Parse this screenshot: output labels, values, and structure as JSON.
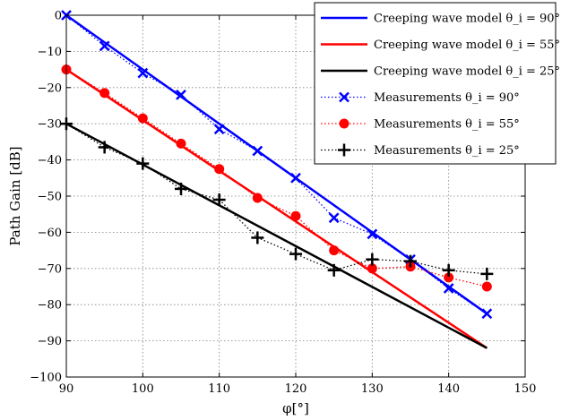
{
  "chart_data": {
    "type": "line",
    "xlabel": "φ[°]",
    "ylabel": "Path Gain [dB]",
    "xlim": [
      90,
      150
    ],
    "ylim": [
      -100,
      0
    ],
    "xticks": [
      90,
      100,
      110,
      120,
      130,
      140,
      150
    ],
    "xtick_labels": [
      "90",
      "100",
      "110",
      "120",
      "130",
      "140",
      "150"
    ],
    "yticks": [
      0,
      -10,
      -20,
      -30,
      -40,
      -50,
      -60,
      -70,
      -80,
      -90,
      -100
    ],
    "ytick_labels": [
      "0",
      "−10",
      "−20",
      "−30",
      "−40",
      "−50",
      "−60",
      "−70",
      "−80",
      "−90",
      "−100"
    ],
    "grid": true,
    "legend_position": "top-right",
    "series": [
      {
        "name": "Creeping wave model θ_i = 90°",
        "kind": "line",
        "color": "#0000ff",
        "x": [
          90,
          145
        ],
        "y": [
          0,
          -82.5
        ]
      },
      {
        "name": "Creeping wave model θ_i = 55°",
        "kind": "line",
        "color": "#ff0000",
        "x": [
          90,
          145
        ],
        "y": [
          -15,
          -92
        ]
      },
      {
        "name": "Creeping wave model θ_i = 25°",
        "kind": "line",
        "color": "#000000",
        "x": [
          90,
          145
        ],
        "y": [
          -30,
          -92
        ]
      },
      {
        "name": "Measurements θ_i = 90°",
        "kind": "markers",
        "marker": "x",
        "color": "#0000ff",
        "x": [
          90,
          95,
          100,
          105,
          110,
          115,
          120,
          125,
          130,
          135,
          140,
          145
        ],
        "y": [
          0,
          -8.5,
          -16,
          -22,
          -31.5,
          -37.5,
          -45,
          -56,
          -60.5,
          -67.5,
          -75.5,
          -82.5
        ]
      },
      {
        "name": "Measurements θ_i = 55°",
        "kind": "markers",
        "marker": "o",
        "color": "#ff0000",
        "x": [
          90,
          95,
          100,
          105,
          110,
          115,
          120,
          125,
          130,
          135,
          140,
          145
        ],
        "y": [
          -15,
          -21.5,
          -28.5,
          -35.5,
          -42.5,
          -50.5,
          -55.5,
          -65,
          -70,
          -69.5,
          -72.5,
          -75
        ]
      },
      {
        "name": "Measurements θ_i = 25°",
        "kind": "markers",
        "marker": "+",
        "color": "#000000",
        "x": [
          90,
          95,
          100,
          105,
          110,
          115,
          120,
          125,
          130,
          135,
          140,
          145
        ],
        "y": [
          -30,
          -36.5,
          -41,
          -48,
          -51,
          -61.5,
          -66,
          -70.5,
          -67.5,
          -68,
          -70.5,
          -71.5
        ]
      }
    ]
  }
}
